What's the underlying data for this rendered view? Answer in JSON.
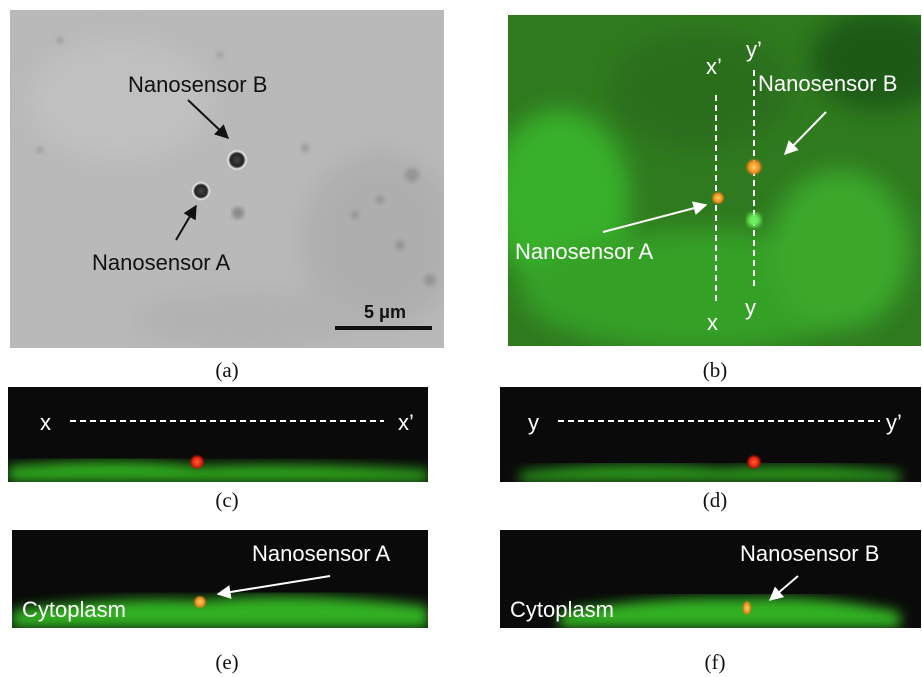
{
  "panels": [
    {
      "caption": "(a)",
      "labels": [
        "Nanosensor B",
        "Nanosensor A"
      ],
      "scale_bar": "5 μm"
    },
    {
      "caption": "(b)",
      "labels": [
        "x’",
        "y’",
        "Nanosensor B",
        "Nanosensor A",
        "x",
        "y"
      ]
    },
    {
      "caption": "(c)",
      "labels": [
        "x",
        "x’"
      ]
    },
    {
      "caption": "(d)",
      "labels": [
        "y",
        "y’"
      ]
    },
    {
      "caption": "(e)",
      "labels": [
        "Nanosensor A",
        "Cytoplasm"
      ]
    },
    {
      "caption": "(f)",
      "labels": [
        "Nanosensor B",
        "Cytoplasm"
      ]
    }
  ]
}
